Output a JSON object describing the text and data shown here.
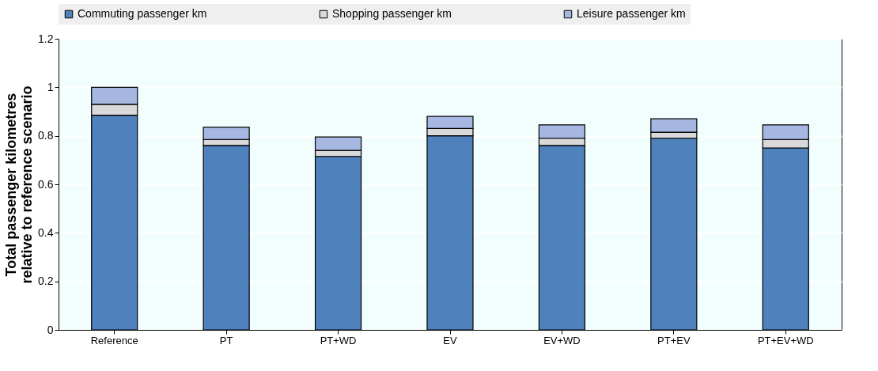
{
  "chart_data": {
    "type": "bar",
    "stacked": true,
    "ylabel": "Total passenger kilometres relative to reference scenario",
    "categories": [
      "Reference",
      "PT",
      "PT+WD",
      "EV",
      "EV+WD",
      "PT+EV",
      "PT+EV+WD"
    ],
    "series": [
      {
        "name": "Commuting passenger km",
        "color": "#4f81bd",
        "values": [
          0.885,
          0.76,
          0.715,
          0.8,
          0.76,
          0.79,
          0.75
        ]
      },
      {
        "name": "Shopping passenger km",
        "color": "#d9d9d9",
        "values": [
          0.045,
          0.025,
          0.025,
          0.03,
          0.03,
          0.025,
          0.035
        ]
      },
      {
        "name": "Leisure passenger km",
        "color": "#a6b8e2",
        "values": [
          0.07,
          0.05,
          0.055,
          0.05,
          0.055,
          0.055,
          0.06
        ]
      }
    ],
    "ylim": [
      0,
      1.2
    ],
    "yticks": [
      0,
      0.2,
      0.4,
      0.6,
      0.8,
      1,
      1.2
    ],
    "grid": "y",
    "legend": "top"
  }
}
